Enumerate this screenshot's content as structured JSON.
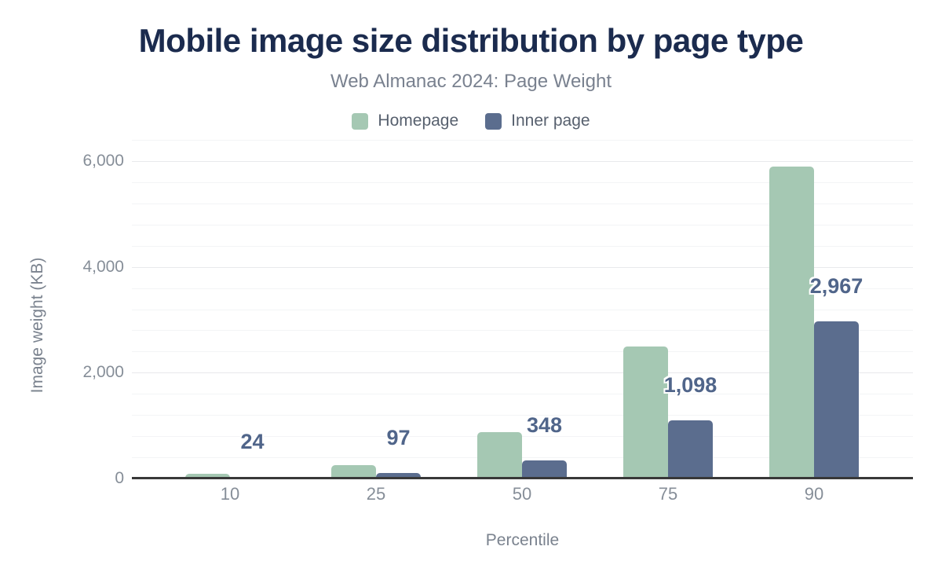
{
  "title": "Mobile image size distribution by page type",
  "subtitle": "Web Almanac 2024: Page Weight",
  "axis": {
    "y_title": "Image weight (KB)",
    "x_title": "Percentile",
    "y_tick_labels": [
      "0",
      "2,000",
      "4,000",
      "6,000"
    ],
    "x_tick_labels": [
      "10",
      "25",
      "50",
      "75",
      "90"
    ]
  },
  "colors": {
    "title": "#1b2b4e",
    "subtitle": "#79818f",
    "homepage_bar": "#a5c8b3",
    "inner_page_bar": "#5b6d8e",
    "value_label": "#50658a",
    "tick_text": "#868e98",
    "axis_line": "#383838",
    "major_gridline": "#e8e9ec",
    "minor_gridline": "#f3f4f6",
    "background": "#ffffff"
  },
  "chart_data": {
    "type": "bar",
    "title": "Mobile image size distribution by page type",
    "subtitle": "Web Almanac 2024: Page Weight",
    "categories": [
      "10",
      "25",
      "50",
      "75",
      "90"
    ],
    "xlabel": "Percentile",
    "ylabel": "Image weight (KB)",
    "ylim": [
      0,
      6400
    ],
    "yticks": [
      0,
      2000,
      4000,
      6000
    ],
    "minor_grid_step": 400,
    "grid": true,
    "legend_position": "top",
    "series": [
      {
        "name": "Homepage",
        "color": "#a5c8b3",
        "values": [
          90,
          250,
          880,
          2500,
          5890
        ],
        "data_labels": []
      },
      {
        "name": "Inner page",
        "color": "#5b6d8e",
        "values": [
          24,
          97,
          348,
          1098,
          2967
        ],
        "data_labels": [
          "24",
          "97",
          "348",
          "1,098",
          "2,967"
        ]
      }
    ]
  }
}
